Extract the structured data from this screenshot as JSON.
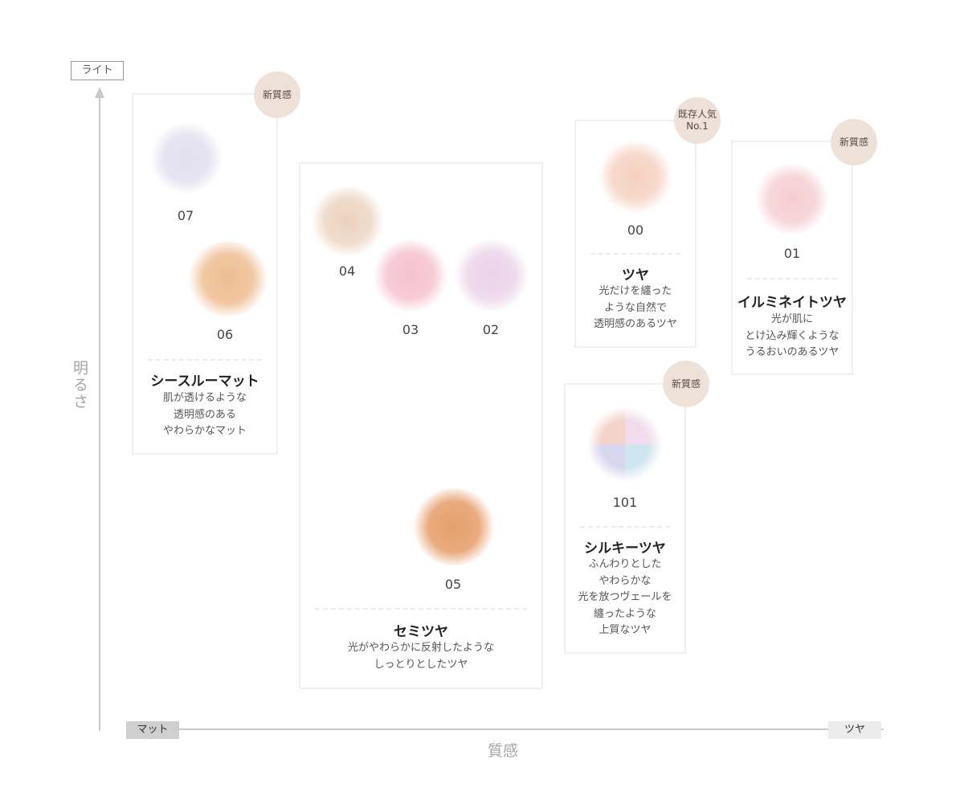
{
  "axes": {
    "y_top": "ライト",
    "y_label": "明るさ",
    "x_left": "マット",
    "x_right": "ツヤ",
    "x_label": "質感"
  },
  "groups": [
    {
      "id": "see-through-matte",
      "title": "シースルーマット",
      "description": [
        "肌が透けるような",
        "透明感のある",
        "やわらかなマット"
      ],
      "badge": "新質感",
      "shades": [
        {
          "num": "07",
          "color": "#e3e0ee"
        },
        {
          "num": "06",
          "color": "#f0c49c"
        }
      ]
    },
    {
      "id": "semi-gloss",
      "title": "セミツヤ",
      "description": [
        "光がやわらかに反射したような",
        "しっとりとしたツヤ"
      ],
      "shades": [
        {
          "num": "04",
          "color": "#eed7c6"
        },
        {
          "num": "03",
          "color": "#f6c7d2"
        },
        {
          "num": "02",
          "color": "#ecd6ea"
        },
        {
          "num": "05",
          "color": "#e9a878"
        }
      ]
    },
    {
      "id": "gloss",
      "title": "ツヤ",
      "description": [
        "光だけを纏った",
        "ような自然で",
        "透明感のあるツヤ"
      ],
      "badge": [
        "既存人気",
        "No.1"
      ],
      "shades": [
        {
          "num": "00",
          "color": "#f6d5c6"
        }
      ]
    },
    {
      "id": "illuminate-gloss",
      "title": "イルミネイトツヤ",
      "description": [
        "光が肌に",
        "とけ込み輝くような",
        "うるおいのあるツヤ"
      ],
      "badge": "新質感",
      "shades": [
        {
          "num": "01",
          "color": "#f6d4d6"
        }
      ]
    },
    {
      "id": "silky-gloss",
      "title": "シルキーツヤ",
      "description": [
        "ふんわりとした",
        "やわらかな",
        "光を放つヴェールを",
        "纏ったような",
        "上質なツヤ"
      ],
      "badge": "新質感",
      "shades": [
        {
          "num": "101",
          "colors": [
            "#f4d3cb",
            "#f1dceb",
            "#d9d6ef",
            "#cfe5ef"
          ]
        }
      ]
    }
  ]
}
